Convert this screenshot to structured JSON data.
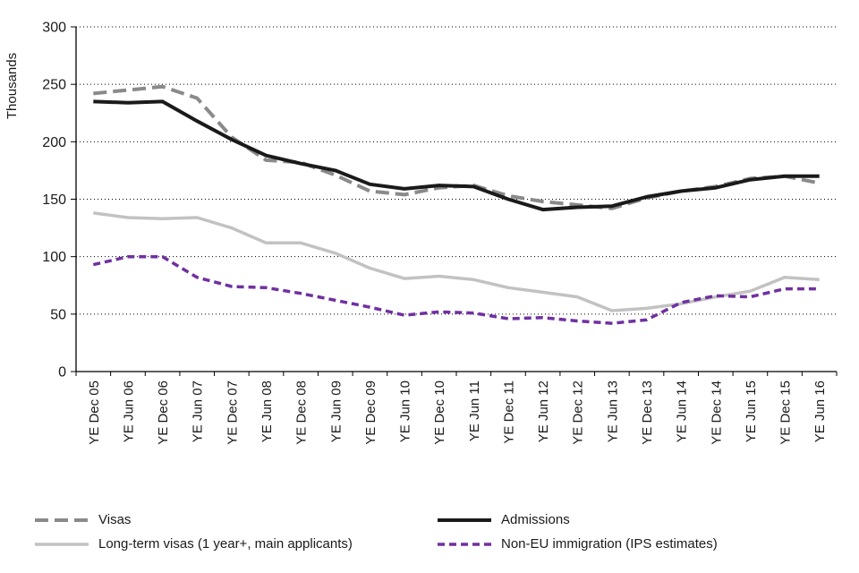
{
  "chart_data": {
    "type": "line",
    "title": "",
    "ylabel": "Thousands",
    "xlabel": "",
    "ylim": [
      0,
      300
    ],
    "yticks": [
      0,
      50,
      100,
      150,
      200,
      250,
      300
    ],
    "grid": "horizontal-dotted",
    "legend_position": "bottom",
    "categories": [
      "YE Dec 05",
      "YE Jun 06",
      "YE Dec 06",
      "YE Jun 07",
      "YE Dec 07",
      "YE Jun 08",
      "YE Dec 08",
      "YE Jun 09",
      "YE Dec 09",
      "YE Jun 10",
      "YE Dec 10",
      "YE Jun 11",
      "YE Dec 11",
      "YE Jun 12",
      "YE Dec 12",
      "YE Jun 13",
      "YE Dec 13",
      "YE Jun 14",
      "YE Dec 14",
      "YE Jun 15",
      "YE Dec 15",
      "YE Jun 16"
    ],
    "series": [
      {
        "name": "Visas",
        "color": "#8a8a8a",
        "dash": "15 7",
        "width": 4,
        "values": [
          242,
          245,
          248,
          238,
          204,
          184,
          182,
          171,
          157,
          154,
          160,
          162,
          153,
          148,
          145,
          142,
          151,
          157,
          161,
          168,
          170,
          164
        ]
      },
      {
        "name": "Admissions",
        "color": "#1a1a1a",
        "dash": null,
        "width": 4,
        "values": [
          235,
          234,
          235,
          218,
          202,
          188,
          181,
          175,
          163,
          159,
          162,
          161,
          150,
          141,
          143,
          144,
          152,
          157,
          160,
          167,
          170,
          170
        ]
      },
      {
        "name": "Long-term visas (1 year+, main applicants)",
        "color": "#c2c2c2",
        "dash": null,
        "width": 3.5,
        "values": [
          138,
          134,
          133,
          134,
          125,
          112,
          112,
          103,
          90,
          81,
          83,
          80,
          73,
          69,
          65,
          53,
          55,
          59,
          65,
          70,
          82,
          80
        ]
      },
      {
        "name": "Non-EU immigration (IPS estimates)",
        "color": "#7030a0",
        "dash": "8 5",
        "width": 3.5,
        "values": [
          93,
          100,
          100,
          82,
          74,
          73,
          68,
          62,
          56,
          49,
          52,
          51,
          46,
          47,
          44,
          42,
          45,
          60,
          66,
          65,
          72,
          72
        ]
      }
    ]
  }
}
